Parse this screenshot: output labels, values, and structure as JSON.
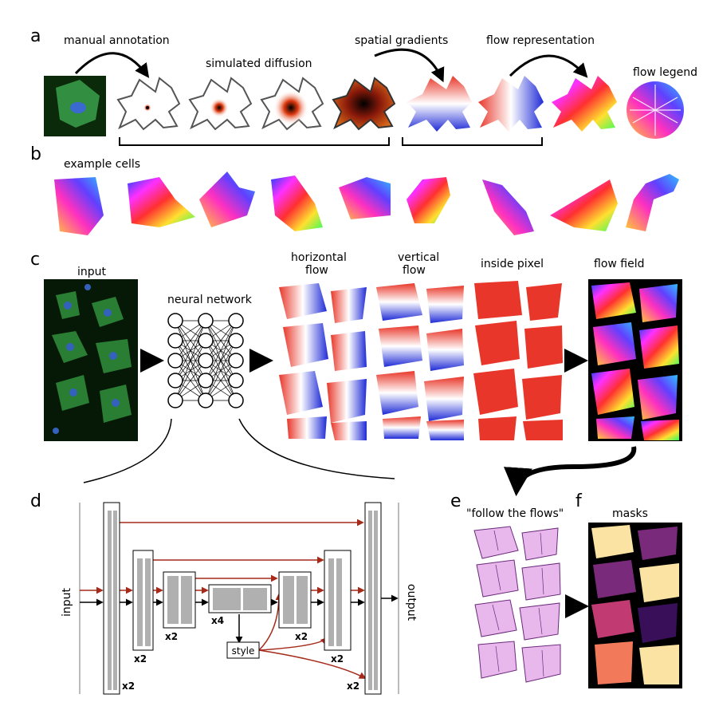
{
  "panels": {
    "a": "a",
    "b": "b",
    "c": "c",
    "d": "d",
    "e": "e",
    "f": "f"
  },
  "labels": {
    "manual_annotation": "manual annotation",
    "simulated_diffusion": "simulated diffusion",
    "spatial_gradients": "spatial gradients",
    "flow_representation": "flow representation",
    "flow_legend": "flow legend",
    "example_cells": "example cells",
    "input": "input",
    "neural_network": "neural network",
    "horizontal_flow_1": "horizontal",
    "horizontal_flow_2": "flow",
    "vertical_flow_1": "vertical",
    "vertical_flow_2": "flow",
    "inside_pixel": "inside pixel",
    "flow_field": "flow field",
    "follow_the_flows": "\"follow the flows\"",
    "masks": "masks"
  },
  "unet": {
    "input_label": "input",
    "output_label": "output",
    "style_label": "style",
    "multipliers": [
      "x2",
      "x2",
      "x2",
      "x4",
      "x2",
      "x2",
      "x2"
    ]
  },
  "colors": {
    "skip_arrow": "#a52a1a",
    "cell_fill": "#b0b0b0",
    "flow_red": "#e8372a",
    "flow_blue": "#1f2bd6",
    "mask_palette": [
      "#fbe3a3",
      "#7a2a7a",
      "#c13a72",
      "#f27a5a",
      "#3a0f5a"
    ]
  }
}
